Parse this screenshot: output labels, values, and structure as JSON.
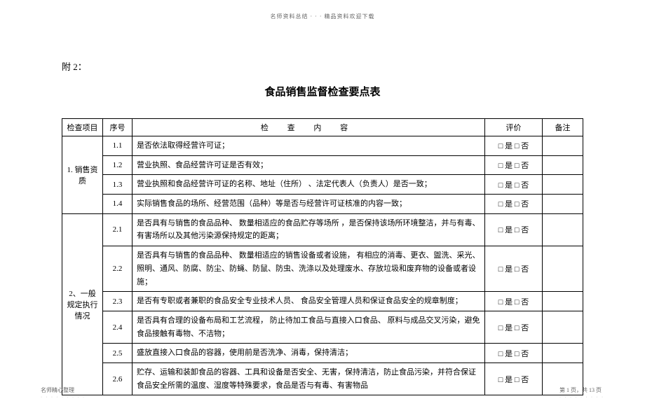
{
  "topHeader": "名师资料总结 · · · 精品资料欢迎下载",
  "attachLabel": "附 2：",
  "mainTitle": "食品销售监督检查要点表",
  "headers": {
    "project": "检查项目",
    "seq": "序号",
    "content": "检 查 内 容",
    "eval": "评价",
    "remark": "备注"
  },
  "evalText": "□ 是  □ 否",
  "groups": [
    {
      "project": "1. 销售资质",
      "rows": [
        {
          "seq": "1.1",
          "content": "是否依法取得经营许可证；"
        },
        {
          "seq": "1.2",
          "content": "营业执照、食品经营许可证是否有效；"
        },
        {
          "seq": "1.3",
          "content": "营业执照和食品经营许可证的名称、地址（住所） 、法定代表人（负责人）是否一致；"
        },
        {
          "seq": "1.4",
          "content": "实际销售食品的场所、经营范围（品种）等是否与经营许可证核准的内容一致；"
        }
      ]
    },
    {
      "project": "2、一般规定执行情况",
      "rows": [
        {
          "seq": "2.1",
          "content": "是否具有与销售的食品品种、 数量相适应的食品贮存等场所 ，是否保持该场所环境整洁，并与有毒、有害场所以及其他污染源保持规定的距离；"
        },
        {
          "seq": "2.2",
          "content": "是否具有与销售的食品品种、 数量相适应的销售设备或者设施， 有相应的消毒、更衣、盥洗、采光、照明、通风、防腐、防尘、防蝇、防鼠、防虫、洗涤以及处理废水、存放垃圾和废弃物的设备或者设施；"
        },
        {
          "seq": "2.3",
          "content": "是否有专职或者兼职的食品安全专业技术人员、 食品安全管理人员和保证食品安全的规章制度；"
        },
        {
          "seq": "2.4",
          "content": "是否具有合理的设备布局和工艺流程， 防止待加工食品与直接入口食品、 原料与成品交叉污染，避免食品接触有毒物、不洁物；"
        },
        {
          "seq": "2.5",
          "content": "盛放直接入口食品的容器，使用前是否洗净、消毒，保持清洁；"
        },
        {
          "seq": "2.6",
          "content": "贮存、运输和装卸食品的容器、工具和设备是否安全、无害，保持清洁，防止食品污染，并符合保证食品安全所需的温度、湿度等特殊要求，食品是否与有毒、有害物品"
        }
      ]
    }
  ],
  "footerLeft": "名师精心整理",
  "footerRight": "第 1 页，共 13 页",
  "dots": "· · · · · · · · ·"
}
